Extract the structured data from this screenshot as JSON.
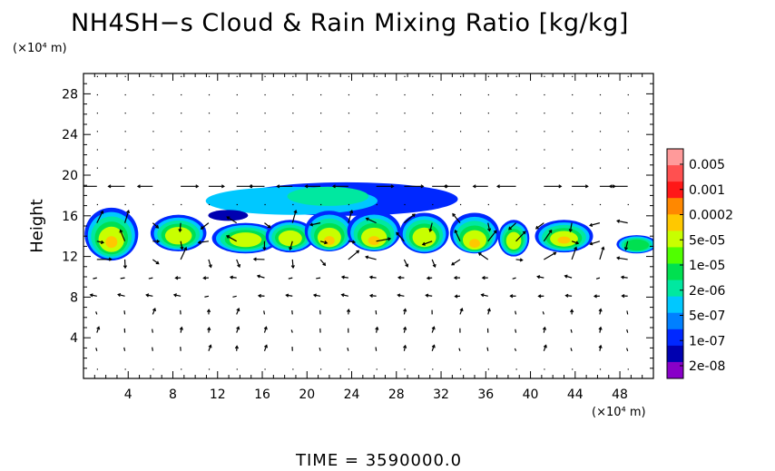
{
  "title": "NH4SH−s Cloud & Rain Mixing Ratio [kg/kg]",
  "y_unit": "(×10⁴ m)",
  "x_unit": "(×10⁴ m)",
  "time_label": "TIME  =  3590000.0",
  "chart_data": {
    "type": "heatmap",
    "title": "NH4SH−s Cloud & Rain Mixing Ratio [kg/kg]",
    "xlabel": "",
    "ylabel": "Height",
    "x_unit": "(×10⁴ m)",
    "y_unit": "(×10⁴ m)",
    "xlim": [
      0,
      51
    ],
    "ylim": [
      0,
      30
    ],
    "x_ticks": [
      4,
      8,
      12,
      16,
      20,
      24,
      28,
      32,
      36,
      40,
      44,
      48
    ],
    "y_ticks": [
      4,
      8,
      12,
      16,
      20,
      24,
      28
    ],
    "grid": false,
    "colorbar": {
      "labels": [
        "0.005",
        "0.001",
        "0.0002",
        "5e-05",
        "1e-05",
        "2e-06",
        "5e-07",
        "1e-07",
        "2e-08"
      ],
      "colors": [
        "#ff9a9a",
        "#ff5050",
        "#ff1818",
        "#ff8800",
        "#ffc800",
        "#c8ff00",
        "#50ff00",
        "#00e050",
        "#00e8a0",
        "#00c8ff",
        "#0080ff",
        "#0028ff",
        "#0000b0",
        "#8800c8"
      ]
    },
    "wind_field": "vector arrows overlaid across the domain",
    "cells": [
      {
        "x": 2.5,
        "y": 14.2,
        "core": 13.2,
        "w": 2.4,
        "h": 2.6,
        "peak": 0.0003
      },
      {
        "x": 8.5,
        "y": 14.3,
        "core": 13.8,
        "w": 2.5,
        "h": 1.8,
        "peak": 5e-05
      },
      {
        "x": 14.5,
        "y": 13.8,
        "core": 13.5,
        "w": 3.0,
        "h": 1.5,
        "peak": 3e-05
      },
      {
        "x": 18.5,
        "y": 14.0,
        "core": 13.6,
        "w": 2.2,
        "h": 1.6,
        "peak": 5e-05
      },
      {
        "x": 22.0,
        "y": 14.5,
        "core": 13.3,
        "w": 2.2,
        "h": 2.0,
        "peak": 0.0002
      },
      {
        "x": 26.0,
        "y": 14.5,
        "core": 13.3,
        "w": 2.4,
        "h": 2.0,
        "peak": 0.0003
      },
      {
        "x": 30.5,
        "y": 14.3,
        "core": 13.5,
        "w": 2.2,
        "h": 2.0,
        "peak": 5e-05
      },
      {
        "x": 35.0,
        "y": 14.3,
        "core": 13.0,
        "w": 2.2,
        "h": 2.0,
        "peak": 0.0002
      },
      {
        "x": 38.5,
        "y": 13.8,
        "core": 13.3,
        "w": 1.4,
        "h": 1.8,
        "peak": 3e-05
      },
      {
        "x": 43.0,
        "y": 14.0,
        "core": 13.5,
        "w": 2.6,
        "h": 1.6,
        "peak": 0.0002
      },
      {
        "x": 49.5,
        "y": 13.2,
        "core": 13.0,
        "w": 1.8,
        "h": 0.9,
        "peak": 1e-05
      }
    ],
    "anvil": {
      "x_range": [
        13.5,
        33.5
      ],
      "y_range": [
        16.0,
        19.3
      ],
      "peak": 1e-07
    }
  }
}
